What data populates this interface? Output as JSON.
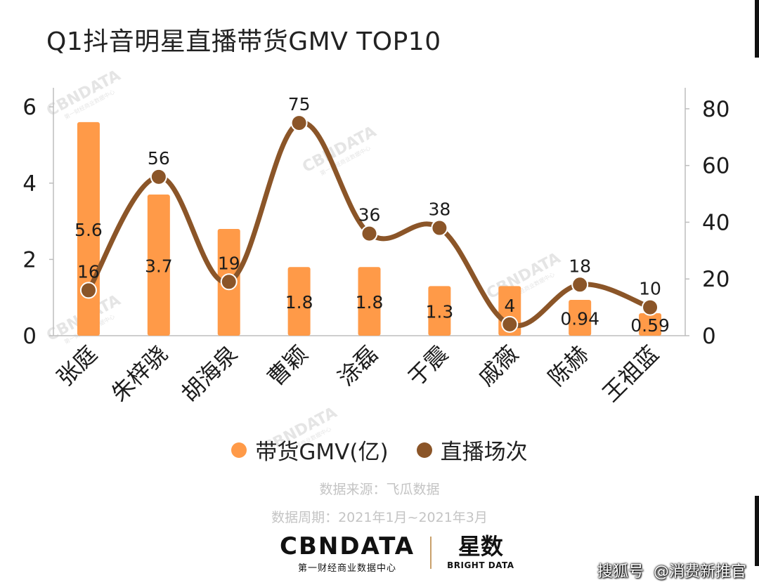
{
  "title": "Q1抖音明星直播带货GMV TOP10",
  "colors": {
    "bar": "#FF9A48",
    "line": "#8B5528",
    "axis": "#bdbdbd",
    "text": "#1c1c1c"
  },
  "legend": {
    "bar_label": "带货GMV(亿)",
    "line_label": "直播场次"
  },
  "notes": {
    "source": "数据来源：飞瓜数据",
    "period": "数据周期：2021年1月~2021年3月"
  },
  "brand": {
    "logo": "CBNDATA",
    "logo_sub": "第一财经商业数据中心",
    "partner_cn": "星数",
    "partner_en": "BRIGHT DATA"
  },
  "watermark": {
    "text": "CBNDATA",
    "sub": "第一财经商业数据中心"
  },
  "corner": {
    "left": "搜狐号",
    "right": "@消费新推官"
  },
  "chart_data": {
    "type": "bar",
    "title": "Q1抖音明星直播带货GMV TOP10",
    "categories": [
      "张庭",
      "朱梓骁",
      "胡海泉",
      "曹颖",
      "涂磊",
      "于震",
      "戚薇",
      "陈赫",
      "王祖蓝"
    ],
    "series": [
      {
        "name": "带货GMV(亿)",
        "type": "bar",
        "axis": "left",
        "values": [
          5.6,
          3.7,
          2.8,
          1.8,
          1.8,
          1.3,
          1.3,
          0.94,
          0.59
        ],
        "labels": [
          "5.6",
          "3.7",
          "",
          "1.8",
          "1.8",
          "1.3",
          "",
          "0.94",
          "0.59"
        ]
      },
      {
        "name": "直播场次",
        "type": "line",
        "axis": "right",
        "values": [
          16,
          56,
          19,
          75,
          36,
          38,
          4,
          18,
          10
        ],
        "labels": [
          "16",
          "56",
          "19",
          "75",
          "36",
          "38",
          "4",
          "18",
          "10"
        ]
      }
    ],
    "y_left": {
      "min": 0,
      "max": 6.5,
      "ticks": [
        0,
        2,
        4,
        6
      ]
    },
    "y_right": {
      "min": 0,
      "max": 87.4,
      "ticks": [
        0,
        20,
        40,
        60,
        80
      ]
    },
    "legend_position": "bottom-center"
  }
}
